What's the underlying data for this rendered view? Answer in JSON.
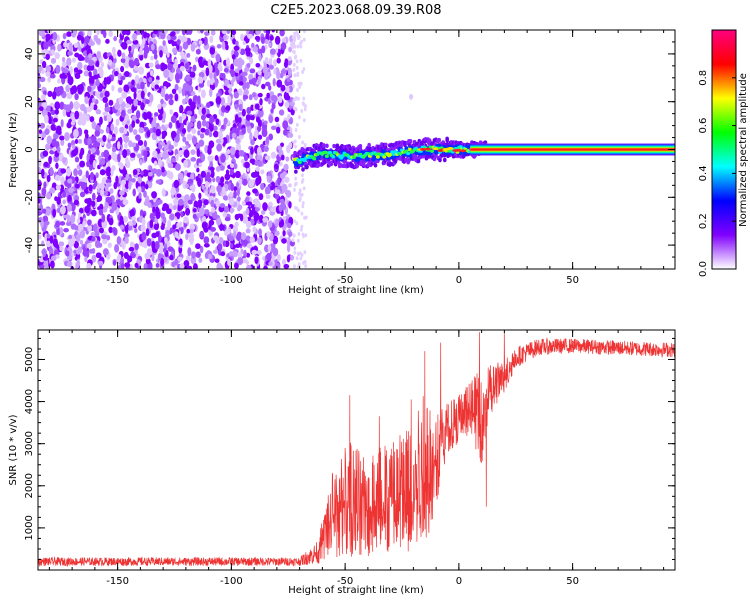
{
  "title": "C2E5.2023.068.09.39.R08",
  "chart_data": [
    {
      "type": "heatmap",
      "xlabel": "Height of straight line (km)",
      "ylabel": "Frequency (Hz)",
      "xlim": [
        -185,
        95
      ],
      "ylim": [
        -50,
        50
      ],
      "x_ticks": [
        -150,
        -100,
        -50,
        0,
        50
      ],
      "y_ticks": [
        -40,
        -20,
        0,
        20,
        40
      ],
      "grid": false,
      "noise_region_x": [
        -185,
        -73
      ],
      "noise_region_y": [
        -50,
        50
      ],
      "signal_track": [
        {
          "x": -72,
          "y": -5
        },
        {
          "x": -60,
          "y": -2
        },
        {
          "x": -45,
          "y": -3
        },
        {
          "x": -30,
          "y": -2
        },
        {
          "x": -15,
          "y": 0
        },
        {
          "x": 0,
          "y": 0
        },
        {
          "x": 10,
          "y": 0
        },
        {
          "x": 95,
          "y": 0
        }
      ],
      "colorbar": {
        "label": "Normalized spectral amplitude",
        "range": [
          0.0,
          1.0
        ],
        "ticks": [
          0.0,
          0.2,
          0.4,
          0.6,
          0.8
        ],
        "tick_labels": [
          "0.0",
          "0.2",
          "0.4",
          "0.6",
          "0.8"
        ],
        "colors": [
          "#ffffff",
          "#8000ff",
          "#0000ff",
          "#00ffff",
          "#00ff00",
          "#ffff00",
          "#ff0000",
          "#ff0080"
        ]
      }
    },
    {
      "type": "line",
      "xlabel": "Height of straight line (km)",
      "ylabel": "SNR (10 * v/v)",
      "xlim": [
        -185,
        95
      ],
      "ylim": [
        0,
        5700
      ],
      "x_ticks": [
        -150,
        -100,
        -50,
        0,
        50
      ],
      "y_ticks": [
        1000,
        2000,
        3000,
        4000,
        5000
      ],
      "grid": false,
      "series_color": "#ee3333",
      "envelope": [
        {
          "x": -185,
          "low": 100,
          "high": 300
        },
        {
          "x": -70,
          "low": 100,
          "high": 300
        },
        {
          "x": -62,
          "low": 150,
          "high": 700
        },
        {
          "x": -55,
          "low": 200,
          "high": 2500
        },
        {
          "x": -48,
          "low": 300,
          "high": 3200
        },
        {
          "x": -40,
          "low": 300,
          "high": 2800
        },
        {
          "x": -30,
          "low": 300,
          "high": 3200
        },
        {
          "x": -20,
          "low": 400,
          "high": 3800
        },
        {
          "x": -15,
          "low": 500,
          "high": 4500
        },
        {
          "x": -10,
          "low": 1500,
          "high": 3700
        },
        {
          "x": -5,
          "low": 2800,
          "high": 4000
        },
        {
          "x": 0,
          "low": 3000,
          "high": 4200
        },
        {
          "x": 5,
          "low": 3200,
          "high": 4500
        },
        {
          "x": 10,
          "low": 2500,
          "high": 4800
        },
        {
          "x": 15,
          "low": 3800,
          "high": 4900
        },
        {
          "x": 20,
          "low": 4200,
          "high": 5000
        },
        {
          "x": 25,
          "low": 4800,
          "high": 5300
        },
        {
          "x": 35,
          "low": 5100,
          "high": 5500
        },
        {
          "x": 50,
          "low": 5150,
          "high": 5500
        },
        {
          "x": 70,
          "low": 5100,
          "high": 5450
        },
        {
          "x": 95,
          "low": 5050,
          "high": 5400
        }
      ],
      "spikes": [
        {
          "x": -48,
          "y": 4150
        },
        {
          "x": -35,
          "y": 3650
        },
        {
          "x": -21,
          "y": 4050
        },
        {
          "x": -15,
          "y": 5200
        },
        {
          "x": -8,
          "y": 5400
        },
        {
          "x": 9,
          "y": 5650
        },
        {
          "x": 12,
          "y": 1500
        },
        {
          "x": 20,
          "y": 5650
        }
      ]
    }
  ]
}
